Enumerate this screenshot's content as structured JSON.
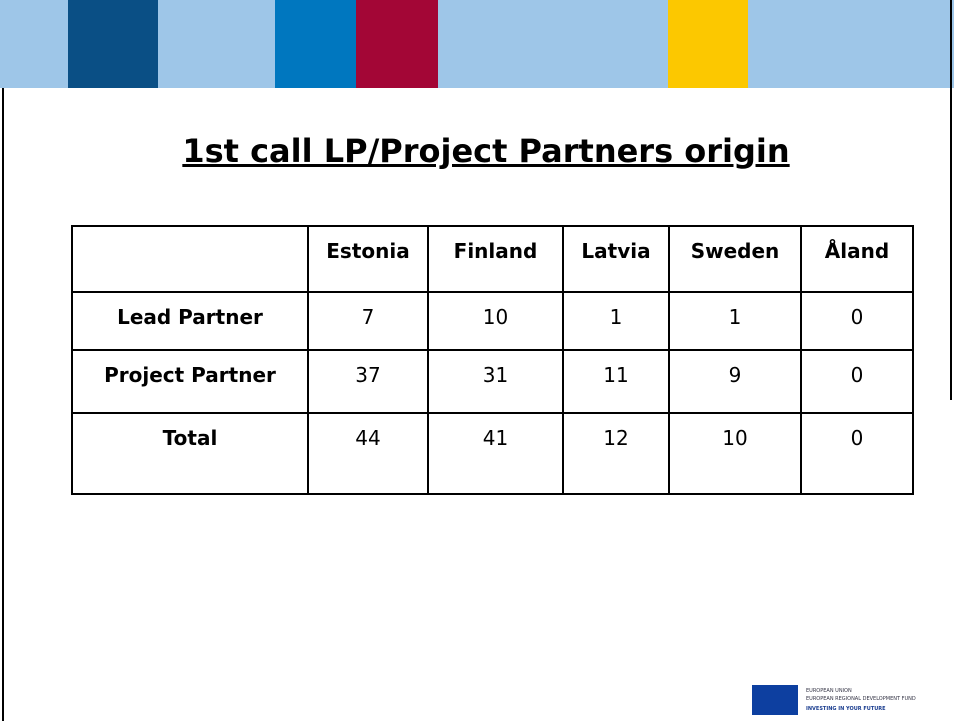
{
  "title": "1st call LP/Project Partners origin",
  "table": {
    "columns": [
      "Estonia",
      "Finland",
      "Latvia",
      "Sweden",
      "Åland"
    ],
    "rows": [
      {
        "label": "Lead Partner",
        "values": [
          7,
          10,
          1,
          1,
          0
        ]
      },
      {
        "label": "Project Partner",
        "values": [
          37,
          31,
          11,
          9,
          0
        ]
      },
      {
        "label": "Total",
        "values": [
          44,
          41,
          12,
          10,
          0
        ]
      }
    ]
  },
  "logo": {
    "line1": "EUROPEAN UNION",
    "line2": "EUROPEAN REGIONAL DEVELOPMENT FUND",
    "line3": "INVESTING IN YOUR FUTURE"
  }
}
